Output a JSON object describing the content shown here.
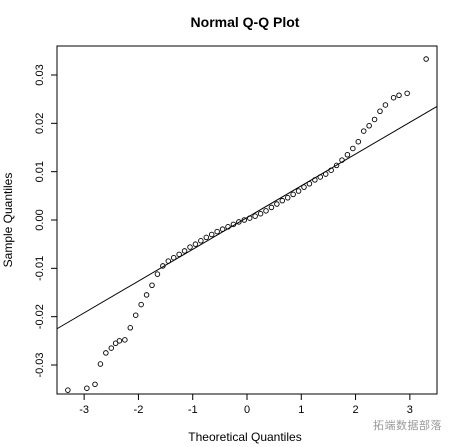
{
  "chart_data": {
    "type": "scatter",
    "title": "Normal Q-Q Plot",
    "xlabel": "Theoretical Quantiles",
    "ylabel": "Sample Quantiles",
    "xlim": [
      -3.5,
      3.5
    ],
    "ylim": [
      -0.036,
      0.036
    ],
    "x_ticks": [
      -3,
      -2,
      -1,
      0,
      1,
      2,
      3
    ],
    "x_tick_labels": [
      "-3",
      "-2",
      "-1",
      "0",
      "1",
      "2",
      "3"
    ],
    "y_ticks": [
      -0.03,
      -0.02,
      -0.01,
      0.0,
      0.01,
      0.02,
      0.03
    ],
    "y_tick_labels": [
      "-0.03",
      "-0.02",
      "-0.01",
      "0.00",
      "0.01",
      "0.02",
      "0.03"
    ],
    "grid": false,
    "reference_line": {
      "x": [
        -3.5,
        3.5
      ],
      "y": [
        -0.0225,
        0.0235
      ]
    },
    "points": {
      "x": [
        -3.3,
        -2.95,
        -2.8,
        -2.7,
        -2.6,
        -2.5,
        -2.42,
        -2.35,
        -2.25,
        -2.15,
        -2.05,
        -1.95,
        -1.85,
        -1.75,
        -1.65,
        -1.55,
        -1.45,
        -1.35,
        -1.25,
        -1.15,
        -1.05,
        -0.95,
        -0.85,
        -0.75,
        -0.65,
        -0.55,
        -0.45,
        -0.35,
        -0.25,
        -0.15,
        -0.05,
        0.05,
        0.15,
        0.25,
        0.35,
        0.45,
        0.55,
        0.65,
        0.75,
        0.85,
        0.95,
        1.05,
        1.15,
        1.25,
        1.35,
        1.45,
        1.55,
        1.65,
        1.75,
        1.85,
        1.95,
        2.05,
        2.15,
        2.25,
        2.35,
        2.45,
        2.55,
        2.7,
        2.8,
        2.95,
        3.3
      ],
      "y": [
        -0.0352,
        -0.0348,
        -0.034,
        -0.0298,
        -0.0275,
        -0.0265,
        -0.0255,
        -0.025,
        -0.0248,
        -0.0223,
        -0.0197,
        -0.0175,
        -0.0155,
        -0.0135,
        -0.0112,
        -0.0095,
        -0.0085,
        -0.0078,
        -0.0071,
        -0.0064,
        -0.0056,
        -0.005,
        -0.0043,
        -0.0036,
        -0.003,
        -0.0024,
        -0.0019,
        -0.0014,
        -0.0009,
        -0.0004,
        0.0,
        0.0004,
        0.0008,
        0.0013,
        0.0019,
        0.0026,
        0.0033,
        0.004,
        0.0046,
        0.0053,
        0.006,
        0.0068,
        0.0075,
        0.0083,
        0.0089,
        0.0095,
        0.0103,
        0.0113,
        0.0124,
        0.0135,
        0.0148,
        0.0162,
        0.0184,
        0.0195,
        0.0208,
        0.0225,
        0.0238,
        0.0253,
        0.0258,
        0.0262,
        0.0333
      ]
    }
  },
  "watermark": "拓端数据部落"
}
